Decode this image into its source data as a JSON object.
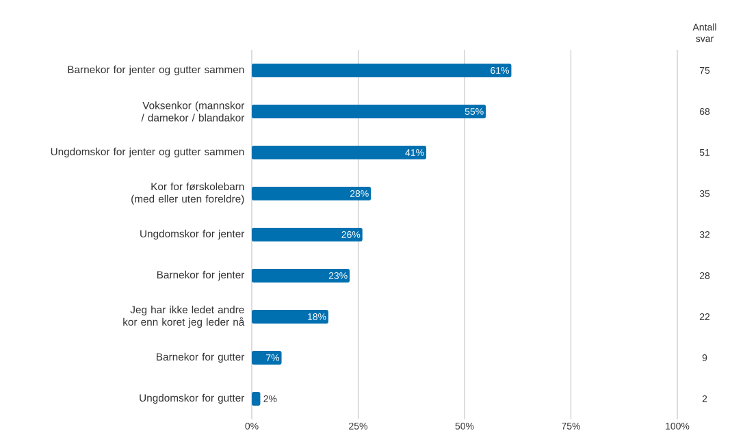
{
  "chart_data": {
    "type": "bar",
    "orientation": "horizontal",
    "categories": [
      "Barnekor for jenter og gutter sammen",
      "Voksenkor (mannskor / damekor / blandakor",
      "Ungdomskor for jenter og gutter sammen",
      "Kor for førskolebarn (med eller uten foreldre)",
      "Ungdomskor for jenter",
      "Barnekor for jenter",
      "Jeg har ikke ledet andre kor enn koret jeg leder nå",
      "Barnekor for gutter",
      "Ungdomskor for gutter"
    ],
    "values": [
      61,
      55,
      41,
      28,
      26,
      23,
      18,
      7,
      2
    ],
    "value_labels": [
      "61%",
      "55%",
      "41%",
      "28%",
      "26%",
      "23%",
      "18%",
      "7%",
      "2%"
    ],
    "color": "#0070b0",
    "xlim": [
      0,
      100
    ],
    "xticks": [
      {
        "value": 0,
        "label": "0%"
      },
      {
        "value": 25,
        "label": "25%"
      },
      {
        "value": 50,
        "label": "50%"
      },
      {
        "value": 75,
        "label": "75%"
      },
      {
        "value": 100,
        "label": "100%"
      }
    ],
    "grid": "x",
    "annotations": [
      "Antall svar",
      "75",
      "68",
      "51",
      "35",
      "32",
      "28",
      "22",
      "9",
      "2"
    ]
  }
}
